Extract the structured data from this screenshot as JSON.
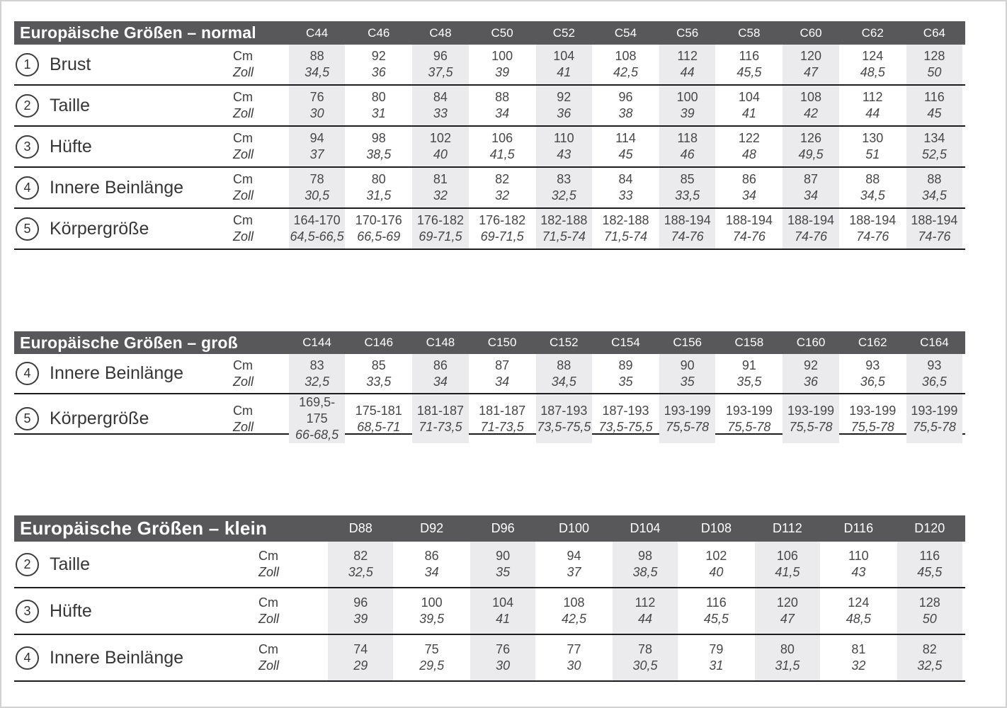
{
  "colors": {
    "header_bar": "#58585a",
    "header_text": "#ffffff",
    "column_stripe": "#ebebed",
    "row_divider": "#1c1c1e",
    "value_text": "#47474a"
  },
  "unit_labels": {
    "cm": "Cm",
    "zoll": "Zoll"
  },
  "tables": [
    {
      "title": "Europäische Größen – normal",
      "columns": [
        "C44",
        "C46",
        "C48",
        "C50",
        "C52",
        "C54",
        "C56",
        "C58",
        "C60",
        "C62",
        "C64"
      ],
      "rows": [
        {
          "number": "1",
          "label": "Brust",
          "cm": [
            "88",
            "92",
            "96",
            "100",
            "104",
            "108",
            "112",
            "116",
            "120",
            "124",
            "128"
          ],
          "zoll": [
            "34,5",
            "36",
            "37,5",
            "39",
            "41",
            "42,5",
            "44",
            "45,5",
            "47",
            "48,5",
            "50"
          ]
        },
        {
          "number": "2",
          "label": "Taille",
          "cm": [
            "76",
            "80",
            "84",
            "88",
            "92",
            "96",
            "100",
            "104",
            "108",
            "112",
            "116"
          ],
          "zoll": [
            "30",
            "31",
            "33",
            "34",
            "36",
            "38",
            "39",
            "41",
            "42",
            "44",
            "45"
          ]
        },
        {
          "number": "3",
          "label": "Hüfte",
          "cm": [
            "94",
            "98",
            "102",
            "106",
            "110",
            "114",
            "118",
            "122",
            "126",
            "130",
            "134"
          ],
          "zoll": [
            "37",
            "38,5",
            "40",
            "41,5",
            "43",
            "45",
            "46",
            "48",
            "49,5",
            "51",
            "52,5"
          ]
        },
        {
          "number": "4",
          "label": "Innere Beinlänge",
          "cm": [
            "78",
            "80",
            "81",
            "82",
            "83",
            "84",
            "85",
            "86",
            "87",
            "88",
            "88"
          ],
          "zoll": [
            "30,5",
            "31,5",
            "32",
            "32",
            "32,5",
            "33",
            "33,5",
            "34",
            "34",
            "34,5",
            "34,5"
          ]
        },
        {
          "number": "5",
          "label": "Körpergröße",
          "cm": [
            "164-170",
            "170-176",
            "176-182",
            "176-182",
            "182-188",
            "182-188",
            "188-194",
            "188-194",
            "188-194",
            "188-194",
            "188-194"
          ],
          "zoll": [
            "64,5-66,5",
            "66,5-69",
            "69-71,5",
            "69-71,5",
            "71,5-74",
            "71,5-74",
            "74-76",
            "74-76",
            "74-76",
            "74-76",
            "74-76"
          ]
        }
      ]
    },
    {
      "title": "Europäische Größen – groß",
      "columns": [
        "C144",
        "C146",
        "C148",
        "C150",
        "C152",
        "C154",
        "C156",
        "C158",
        "C160",
        "C162",
        "C164"
      ],
      "rows": [
        {
          "number": "4",
          "label": "Innere Beinlänge",
          "cm": [
            "83",
            "85",
            "86",
            "87",
            "88",
            "89",
            "90",
            "91",
            "92",
            "93",
            "93"
          ],
          "zoll": [
            "32,5",
            "33,5",
            "34",
            "34",
            "34,5",
            "35",
            "35",
            "35,5",
            "36",
            "36,5",
            "36,5"
          ]
        },
        {
          "number": "5",
          "label": "Körpergröße",
          "cm": [
            "169,5-175",
            "175-181",
            "181-187",
            "181-187",
            "187-193",
            "187-193",
            "193-199",
            "193-199",
            "193-199",
            "193-199",
            "193-199"
          ],
          "zoll": [
            "66-68,5",
            "68,5-71",
            "71-73,5",
            "71-73,5",
            "73,5-75,5",
            "73,5-75,5",
            "75,5-78",
            "75,5-78",
            "75,5-78",
            "75,5-78",
            "75,5-78"
          ]
        }
      ]
    },
    {
      "title": "Europäische Größen – klein",
      "columns": [
        "D88",
        "D92",
        "D96",
        "D100",
        "D104",
        "D108",
        "D112",
        "D116",
        "D120"
      ],
      "rows": [
        {
          "number": "2",
          "label": "Taille",
          "cm": [
            "82",
            "86",
            "90",
            "94",
            "98",
            "102",
            "106",
            "110",
            "116"
          ],
          "zoll": [
            "32,5",
            "34",
            "35",
            "37",
            "38,5",
            "40",
            "41,5",
            "43",
            "45,5"
          ]
        },
        {
          "number": "3",
          "label": "Hüfte",
          "cm": [
            "96",
            "100",
            "104",
            "108",
            "112",
            "116",
            "120",
            "124",
            "128"
          ],
          "zoll": [
            "39",
            "39,5",
            "41",
            "42,5",
            "44",
            "45,5",
            "47",
            "48,5",
            "50"
          ]
        },
        {
          "number": "4",
          "label": "Innere Beinlänge",
          "cm": [
            "74",
            "75",
            "76",
            "77",
            "78",
            "79",
            "80",
            "81",
            "82"
          ],
          "zoll": [
            "29",
            "29,5",
            "30",
            "30",
            "30,5",
            "31",
            "31,5",
            "32",
            "32,5"
          ]
        }
      ]
    }
  ]
}
